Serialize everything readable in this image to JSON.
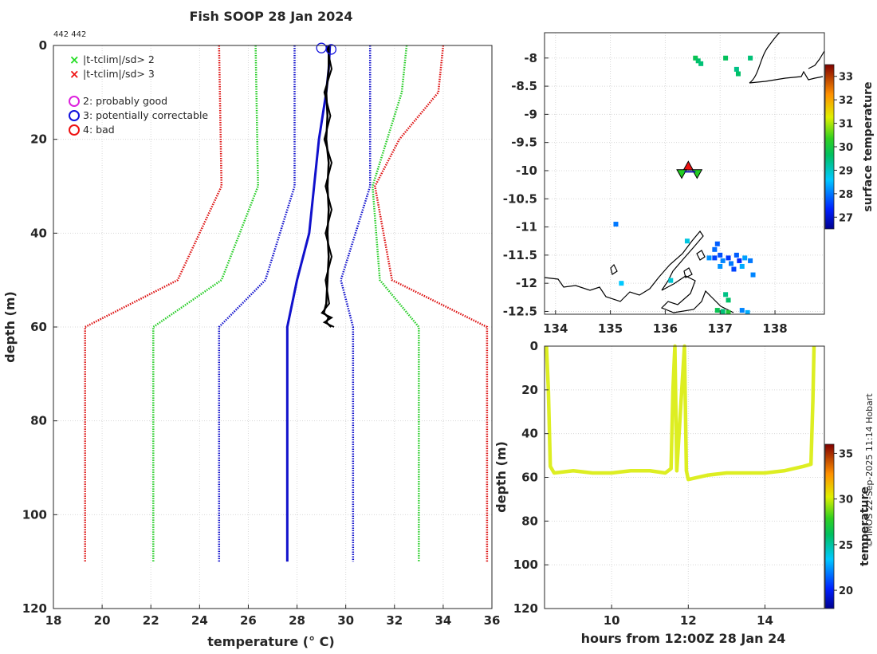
{
  "credit": "© IMOS 22-Sep-2025 11:14 Hobart",
  "chart_data": [
    {
      "id": "profile",
      "type": "line",
      "title": "Fish SOOP 28 Jan 2024",
      "subtitle": "442 442",
      "xlabel": "temperature (° C)",
      "ylabel": "depth (m)",
      "xlim": [
        18,
        36
      ],
      "ylim": [
        0,
        120
      ],
      "y_reversed": true,
      "xticks": [
        18,
        20,
        22,
        24,
        26,
        28,
        30,
        32,
        34,
        36
      ],
      "yticks": [
        0,
        20,
        40,
        60,
        80,
        100,
        120
      ],
      "grid": true,
      "legend": {
        "placement": "top-left",
        "entries": [
          {
            "label": "|t-tclim|/sd> 2",
            "marker": "x",
            "color": "#22dd22"
          },
          {
            "label": "|t-tclim|/sd> 3",
            "marker": "x",
            "color": "#ee1111"
          },
          {
            "label": "2: probably good",
            "marker": "o",
            "color": "#dd22dd"
          },
          {
            "label": "3: potentially correctable",
            "marker": "o",
            "color": "#1111dd"
          },
          {
            "label": "4: bad",
            "marker": "o",
            "color": "#ee1111"
          }
        ]
      },
      "climatology_bounds": [
        {
          "name": "-3sd",
          "color": "#dd1111",
          "depth": [
            0,
            30,
            50,
            60,
            110
          ],
          "temp": [
            24.8,
            24.9,
            23.1,
            19.3,
            19.3
          ]
        },
        {
          "name": "-2sd",
          "color": "#22cc22",
          "depth": [
            0,
            30,
            50,
            60,
            110
          ],
          "temp": [
            26.3,
            26.4,
            24.9,
            22.1,
            22.1
          ]
        },
        {
          "name": "-1sd",
          "color": "#1111cc",
          "depth": [
            0,
            30,
            50,
            60,
            110
          ],
          "temp": [
            27.9,
            27.9,
            26.7,
            24.8,
            24.8
          ]
        },
        {
          "name": "+1sd",
          "color": "#1111cc",
          "depth": [
            0,
            30,
            50,
            60,
            110
          ],
          "temp": [
            31.0,
            31.0,
            29.8,
            30.3,
            30.3
          ]
        },
        {
          "name": "+2sd",
          "color": "#22cc22",
          "depth": [
            0,
            10,
            30,
            50,
            60,
            110
          ],
          "temp": [
            32.5,
            32.3,
            31.1,
            31.4,
            33.0,
            33.0
          ]
        },
        {
          "name": "+3sd",
          "color": "#dd1111",
          "depth": [
            0,
            10,
            20,
            30,
            50,
            60,
            110
          ],
          "temp": [
            34.0,
            33.8,
            32.2,
            31.2,
            31.9,
            35.8,
            35.8
          ]
        }
      ],
      "climatology_mean": {
        "color": "#1111cc",
        "depth": [
          0,
          5,
          10,
          15,
          20,
          30,
          40,
          50,
          60,
          110
        ],
        "temp": [
          29.35,
          29.3,
          29.2,
          29.05,
          28.9,
          28.7,
          28.5,
          28.0,
          27.6,
          27.6
        ]
      },
      "observed": {
        "color": "#000000",
        "depth": [
          0,
          5,
          10,
          15,
          20,
          25,
          30,
          35,
          40,
          45,
          50,
          55,
          57,
          58,
          59,
          60
        ],
        "temp": [
          29.3,
          29.3,
          29.2,
          29.25,
          29.2,
          29.3,
          29.25,
          29.3,
          29.25,
          29.3,
          29.25,
          29.2,
          29.1,
          29.3,
          29.2,
          29.4
        ]
      },
      "flag_circles": [
        {
          "temp": 29.0,
          "depth": 0.2,
          "color": "#1111dd"
        },
        {
          "temp": 29.4,
          "depth": 0.5,
          "color": "#1111dd"
        }
      ]
    },
    {
      "id": "map",
      "type": "scatter",
      "xlim": [
        133.8,
        138.9
      ],
      "ylim": [
        -12.55,
        -7.55
      ],
      "xticks": [
        134,
        135,
        136,
        137,
        138
      ],
      "yticks": [
        -8,
        -8.5,
        -9,
        -9.5,
        -10,
        -10.5,
        -11,
        -11.5,
        -12,
        -12.5
      ],
      "ytick_labels": [
        "-8",
        "-8.5",
        "-9",
        "-9.5",
        "-10",
        "-10.5",
        "-11",
        "-11.5",
        "-12",
        "-12.5"
      ],
      "colorbar": {
        "label": "surface temperature",
        "range": [
          26.5,
          33.5
        ],
        "ticks": [
          27,
          28,
          29,
          30,
          31,
          32,
          33
        ]
      },
      "track_markers": [
        {
          "lon": 136.42,
          "lat": -9.92,
          "symbol": "triangle-up",
          "color": "#ee1111"
        },
        {
          "lon": 136.3,
          "lat": -10.05,
          "symbol": "triangle-down",
          "color": "#22cc22"
        },
        {
          "lon": 136.58,
          "lat": -10.05,
          "symbol": "triangle-down",
          "color": "#22cc22"
        }
      ],
      "sst_points": [
        {
          "lon": 136.55,
          "lat": -8.0,
          "t": 29.8
        },
        {
          "lon": 136.6,
          "lat": -8.05,
          "t": 29.6
        },
        {
          "lon": 136.65,
          "lat": -8.1,
          "t": 29.5
        },
        {
          "lon": 137.1,
          "lat": -8.0,
          "t": 29.7
        },
        {
          "lon": 137.3,
          "lat": -8.2,
          "t": 29.4
        },
        {
          "lon": 137.33,
          "lat": -8.28,
          "t": 29.6
        },
        {
          "lon": 137.55,
          "lat": -8.0,
          "t": 29.5
        },
        {
          "lon": 135.1,
          "lat": -10.95,
          "t": 28.0
        },
        {
          "lon": 136.4,
          "lat": -11.25,
          "t": 28.8
        },
        {
          "lon": 136.95,
          "lat": -11.3,
          "t": 27.8
        },
        {
          "lon": 136.9,
          "lat": -11.4,
          "t": 27.9
        },
        {
          "lon": 136.8,
          "lat": -11.55,
          "t": 28.2
        },
        {
          "lon": 136.9,
          "lat": -11.55,
          "t": 27.6
        },
        {
          "lon": 137.0,
          "lat": -11.5,
          "t": 27.7
        },
        {
          "lon": 137.05,
          "lat": -11.6,
          "t": 28.1
        },
        {
          "lon": 137.15,
          "lat": -11.55,
          "t": 27.5
        },
        {
          "lon": 137.2,
          "lat": -11.65,
          "t": 28.0
        },
        {
          "lon": 137.3,
          "lat": -11.5,
          "t": 27.8
        },
        {
          "lon": 137.35,
          "lat": -11.6,
          "t": 27.4
        },
        {
          "lon": 137.45,
          "lat": -11.55,
          "t": 28.3
        },
        {
          "lon": 137.55,
          "lat": -11.6,
          "t": 28.0
        },
        {
          "lon": 137.0,
          "lat": -11.7,
          "t": 28.2
        },
        {
          "lon": 137.25,
          "lat": -11.75,
          "t": 27.6
        },
        {
          "lon": 137.4,
          "lat": -11.7,
          "t": 28.4
        },
        {
          "lon": 137.6,
          "lat": -11.85,
          "t": 28.1
        },
        {
          "lon": 135.2,
          "lat": -12.0,
          "t": 28.6
        },
        {
          "lon": 136.1,
          "lat": -11.95,
          "t": 28.9
        },
        {
          "lon": 137.1,
          "lat": -12.2,
          "t": 29.4
        },
        {
          "lon": 137.15,
          "lat": -12.3,
          "t": 29.6
        },
        {
          "lon": 136.95,
          "lat": -12.48,
          "t": 29.8
        },
        {
          "lon": 137.05,
          "lat": -12.5,
          "t": 29.5
        },
        {
          "lon": 137.15,
          "lat": -12.52,
          "t": 30.1
        },
        {
          "lon": 137.4,
          "lat": -12.48,
          "t": 28.1
        },
        {
          "lon": 137.5,
          "lat": -12.52,
          "t": 28.4
        }
      ]
    },
    {
      "id": "depth-time",
      "type": "scatter",
      "xlabel": "hours from 12:00Z 28 Jan 24",
      "ylabel": "depth (m)",
      "xlim": [
        8.25,
        15.55
      ],
      "ylim": [
        0,
        120
      ],
      "y_reversed": true,
      "xticks": [
        10,
        12,
        14
      ],
      "yticks": [
        0,
        20,
        40,
        60,
        80,
        100,
        120
      ],
      "colorbar": {
        "label": "temperature",
        "range": [
          18,
          36
        ],
        "ticks": [
          20,
          25,
          30,
          35
        ]
      },
      "series_color": "#ddee22",
      "hours": [
        8.3,
        8.35,
        8.4,
        8.5,
        9.0,
        9.5,
        10.0,
        10.5,
        11.0,
        11.4,
        11.55,
        11.6,
        11.65,
        11.7,
        11.9,
        11.95,
        12.0,
        12.5,
        13.0,
        13.5,
        14.0,
        14.5,
        15.0,
        15.2,
        15.25,
        15.28
      ],
      "depth": [
        0,
        20,
        55,
        58,
        57,
        58,
        58,
        57,
        57,
        58,
        56,
        20,
        0,
        57,
        0,
        57,
        61,
        59,
        58,
        58,
        58,
        57,
        55,
        54,
        25,
        0
      ],
      "temp": [
        29.5,
        29.5,
        29.5,
        29.5,
        29.5,
        29.5,
        29.5,
        29.5,
        29.5,
        29.5,
        29.5,
        29.5,
        29.5,
        29.5,
        29.5,
        29.5,
        29.5,
        29.5,
        29.5,
        29.5,
        29.5,
        29.5,
        29.5,
        29.5,
        29.5,
        29.5
      ]
    }
  ]
}
